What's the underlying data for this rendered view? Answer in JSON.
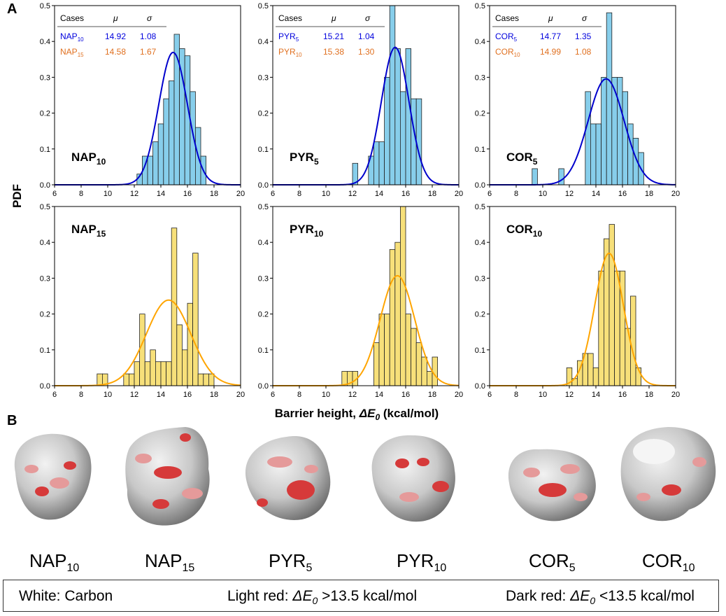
{
  "panel_labels": {
    "a": "A",
    "b": "B"
  },
  "axis_labels": {
    "y": "PDF",
    "x_prefix": "Barrier height, ",
    "x_symbol": "ΔE",
    "x_sub": "0",
    "x_unit": " (kcal/mol)"
  },
  "stats_tables": [
    {
      "header": [
        "Cases",
        "μ",
        "σ"
      ],
      "rows": [
        {
          "base": "NAP",
          "sub": "10",
          "mu": "14.92",
          "sigma": "1.08",
          "color": "#0000dd"
        },
        {
          "base": "NAP",
          "sub": "15",
          "mu": "14.58",
          "sigma": "1.67",
          "color": "#e07020"
        }
      ]
    },
    {
      "header": [
        "Cases",
        "μ",
        "σ"
      ],
      "rows": [
        {
          "base": "PYR",
          "sub": "5",
          "mu": "15.21",
          "sigma": "1.04",
          "color": "#0000dd"
        },
        {
          "base": "PYR",
          "sub": "10",
          "mu": "15.38",
          "sigma": "1.30",
          "color": "#e07020"
        }
      ]
    },
    {
      "header": [
        "Cases",
        "μ",
        "σ"
      ],
      "rows": [
        {
          "base": "COR",
          "sub": "5",
          "mu": "14.77",
          "sigma": "1.35",
          "color": "#0000dd"
        },
        {
          "base": "COR",
          "sub": "10",
          "mu": "14.99",
          "sigma": "1.08",
          "color": "#e07020"
        }
      ]
    }
  ],
  "chart_data": [
    {
      "type": "bar",
      "name": "NAP10",
      "label": {
        "base": "NAP",
        "sub": "10"
      },
      "label_pos": "mid-left",
      "fill": "#87ceeb",
      "curve": "#0000cc",
      "bin_width": 0.4,
      "bins": [
        [
          12.2,
          0.03
        ],
        [
          12.6,
          0.08
        ],
        [
          13.0,
          0.08
        ],
        [
          13.4,
          0.12
        ],
        [
          13.8,
          0.17
        ],
        [
          14.2,
          0.24
        ],
        [
          14.6,
          0.29
        ],
        [
          15.0,
          0.42
        ],
        [
          15.4,
          0.38
        ],
        [
          15.8,
          0.36
        ],
        [
          16.2,
          0.26
        ],
        [
          16.6,
          0.16
        ],
        [
          17.0,
          0.08
        ]
      ],
      "mu": 14.92,
      "sigma": 1.08,
      "xlim": [
        6,
        20
      ],
      "ylim": [
        0,
        0.5
      ],
      "xticks": [
        6,
        8,
        10,
        12,
        14,
        16,
        18,
        20
      ],
      "yticks": [
        0.0,
        0.1,
        0.2,
        0.3,
        0.4,
        0.5
      ]
    },
    {
      "type": "bar",
      "name": "PYR5",
      "label": {
        "base": "PYR",
        "sub": "5"
      },
      "label_pos": "mid-left",
      "fill": "#87ceeb",
      "curve": "#0000cc",
      "bin_width": 0.4,
      "bins": [
        [
          12.0,
          0.06
        ],
        [
          13.2,
          0.08
        ],
        [
          13.6,
          0.12
        ],
        [
          14.0,
          0.12
        ],
        [
          14.4,
          0.3
        ],
        [
          14.8,
          0.5
        ],
        [
          15.2,
          0.38
        ],
        [
          15.6,
          0.26
        ],
        [
          16.0,
          0.38
        ],
        [
          16.4,
          0.24
        ],
        [
          16.8,
          0.24
        ]
      ],
      "mu": 15.21,
      "sigma": 1.04,
      "xlim": [
        6,
        20
      ],
      "ylim": [
        0,
        0.5
      ],
      "xticks": [
        6,
        8,
        10,
        12,
        14,
        16,
        18,
        20
      ],
      "yticks": [
        0.0,
        0.1,
        0.2,
        0.3,
        0.4,
        0.5
      ]
    },
    {
      "type": "bar",
      "name": "COR5",
      "label": {
        "base": "COR",
        "sub": "5"
      },
      "label_pos": "mid-left",
      "fill": "#87ceeb",
      "curve": "#0000cc",
      "bin_width": 0.4,
      "bins": [
        [
          9.2,
          0.045
        ],
        [
          11.2,
          0.045
        ],
        [
          13.2,
          0.26
        ],
        [
          13.6,
          0.17
        ],
        [
          14.0,
          0.17
        ],
        [
          14.4,
          0.3
        ],
        [
          14.8,
          0.48
        ],
        [
          15.2,
          0.3
        ],
        [
          15.6,
          0.3
        ],
        [
          16.0,
          0.26
        ],
        [
          16.4,
          0.17
        ],
        [
          16.8,
          0.13
        ],
        [
          17.2,
          0.09
        ]
      ],
      "mu": 14.77,
      "sigma": 1.35,
      "xlim": [
        6,
        20
      ],
      "ylim": [
        0,
        0.5
      ],
      "xticks": [
        6,
        8,
        10,
        12,
        14,
        16,
        18,
        20
      ],
      "yticks": [
        0.0,
        0.1,
        0.2,
        0.3,
        0.4,
        0.5
      ]
    },
    {
      "type": "bar",
      "name": "NAP15",
      "label": {
        "base": "NAP",
        "sub": "15"
      },
      "label_pos": "top-left",
      "fill": "#f7e07a",
      "curve": "#ffa500",
      "bin_width": 0.4,
      "bins": [
        [
          9.2,
          0.033
        ],
        [
          9.6,
          0.033
        ],
        [
          11.2,
          0.033
        ],
        [
          11.6,
          0.033
        ],
        [
          12.0,
          0.067
        ],
        [
          12.4,
          0.2
        ],
        [
          12.8,
          0.067
        ],
        [
          13.2,
          0.1
        ],
        [
          13.6,
          0.067
        ],
        [
          14.0,
          0.067
        ],
        [
          14.4,
          0.067
        ],
        [
          14.8,
          0.44
        ],
        [
          15.2,
          0.17
        ],
        [
          15.6,
          0.1
        ],
        [
          16.0,
          0.23
        ],
        [
          16.4,
          0.37
        ],
        [
          16.8,
          0.033
        ],
        [
          17.2,
          0.033
        ],
        [
          17.6,
          0.033
        ]
      ],
      "mu": 14.58,
      "sigma": 1.67,
      "xlim": [
        6,
        20
      ],
      "ylim": [
        0,
        0.5
      ],
      "xticks": [
        6,
        8,
        10,
        12,
        14,
        16,
        18,
        20
      ],
      "yticks": [
        0.0,
        0.1,
        0.2,
        0.3,
        0.4,
        0.5
      ]
    },
    {
      "type": "bar",
      "name": "PYR10",
      "label": {
        "base": "PYR",
        "sub": "10"
      },
      "label_pos": "top-left",
      "fill": "#f7e07a",
      "curve": "#ffa500",
      "bin_width": 0.4,
      "bins": [
        [
          11.2,
          0.04
        ],
        [
          11.6,
          0.04
        ],
        [
          12.0,
          0.04
        ],
        [
          13.6,
          0.12
        ],
        [
          14.0,
          0.2
        ],
        [
          14.4,
          0.2
        ],
        [
          14.8,
          0.38
        ],
        [
          15.2,
          0.4
        ],
        [
          15.6,
          0.5
        ],
        [
          16.0,
          0.2
        ],
        [
          16.4,
          0.16
        ],
        [
          16.8,
          0.12
        ],
        [
          17.2,
          0.08
        ],
        [
          17.6,
          0.04
        ],
        [
          18.0,
          0.08
        ]
      ],
      "mu": 15.38,
      "sigma": 1.3,
      "xlim": [
        6,
        20
      ],
      "ylim": [
        0,
        0.5
      ],
      "xticks": [
        6,
        8,
        10,
        12,
        14,
        16,
        18,
        20
      ],
      "yticks": [
        0.0,
        0.1,
        0.2,
        0.3,
        0.4,
        0.5
      ]
    },
    {
      "type": "bar",
      "name": "COR10",
      "label": {
        "base": "COR",
        "sub": "10"
      },
      "label_pos": "top-left",
      "fill": "#f7e07a",
      "curve": "#ffa500",
      "bin_width": 0.4,
      "bins": [
        [
          11.8,
          0.05
        ],
        [
          12.2,
          0.02
        ],
        [
          12.6,
          0.07
        ],
        [
          13.0,
          0.09
        ],
        [
          13.4,
          0.09
        ],
        [
          13.8,
          0.05
        ],
        [
          14.2,
          0.32
        ],
        [
          14.6,
          0.41
        ],
        [
          15.0,
          0.45
        ],
        [
          15.4,
          0.32
        ],
        [
          15.8,
          0.32
        ],
        [
          16.2,
          0.16
        ],
        [
          16.6,
          0.25
        ],
        [
          17.0,
          0.05
        ]
      ],
      "mu": 14.99,
      "sigma": 1.08,
      "xlim": [
        6,
        20
      ],
      "ylim": [
        0,
        0.5
      ],
      "xticks": [
        6,
        8,
        10,
        12,
        14,
        16,
        18,
        20
      ],
      "yticks": [
        0.0,
        0.1,
        0.2,
        0.3,
        0.4,
        0.5
      ]
    }
  ],
  "molecules": [
    {
      "base": "NAP",
      "sub": "10"
    },
    {
      "base": "NAP",
      "sub": "15"
    },
    {
      "base": "PYR",
      "sub": "5"
    },
    {
      "base": "PYR",
      "sub": "10"
    },
    {
      "base": "COR",
      "sub": "5"
    },
    {
      "base": "COR",
      "sub": "10"
    }
  ],
  "legend": {
    "carbon": "White: Carbon",
    "light_prefix": "Light red: ",
    "light_suffix": " >13.5 kcal/mol",
    "dark_prefix": "Dark red: ",
    "dark_suffix": " <13.5 kcal/mol",
    "symbol": "ΔE",
    "symbol_sub": "0"
  }
}
